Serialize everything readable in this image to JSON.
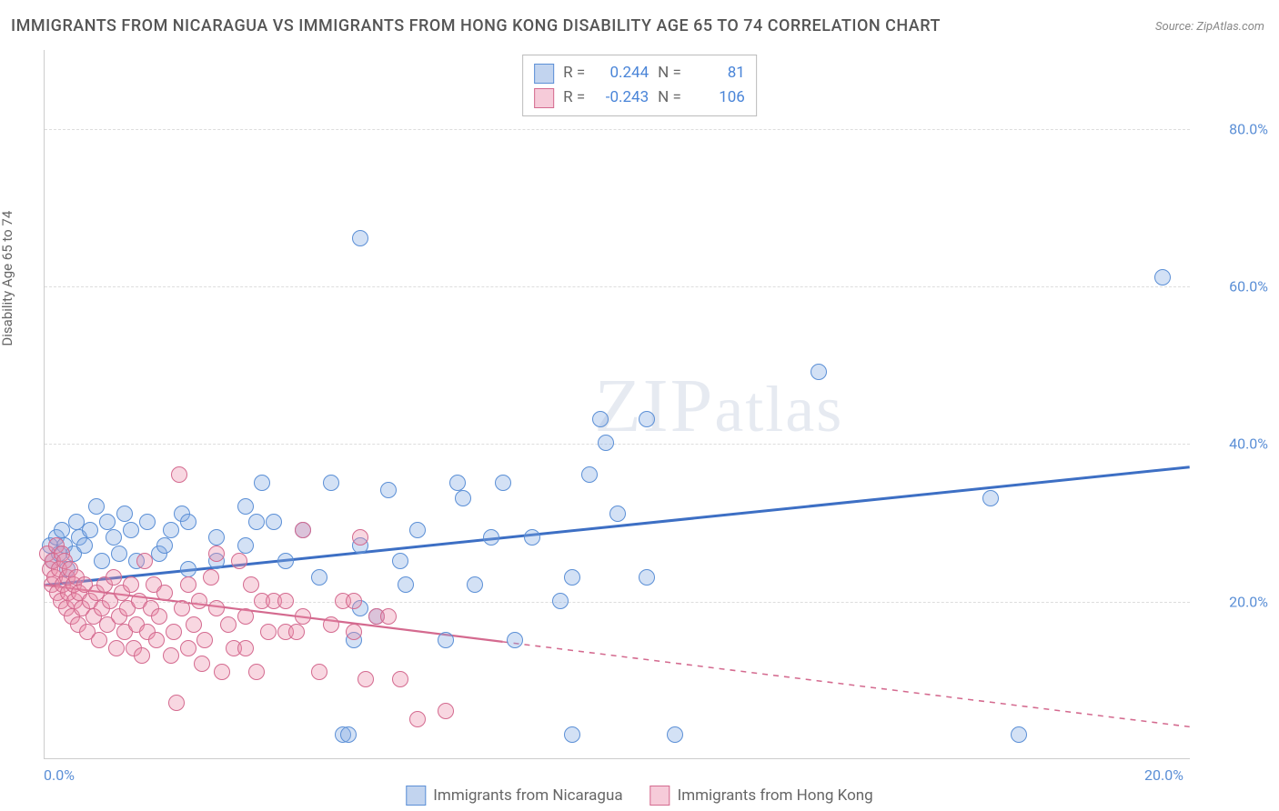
{
  "title": "IMMIGRANTS FROM NICARAGUA VS IMMIGRANTS FROM HONG KONG DISABILITY AGE 65 TO 74 CORRELATION CHART",
  "source": "Source: ZipAtlas.com",
  "y_axis_label": "Disability Age 65 to 74",
  "watermark": "ZIPatlas",
  "chart": {
    "type": "scatter",
    "xlim": [
      0,
      20
    ],
    "ylim": [
      0,
      90
    ],
    "x_ticks": [
      {
        "v": 0,
        "label": "0.0%"
      },
      {
        "v": 20,
        "label": "20.0%"
      }
    ],
    "y_ticks": [
      {
        "v": 20,
        "label": "20.0%"
      },
      {
        "v": 40,
        "label": "40.0%"
      },
      {
        "v": 60,
        "label": "60.0%"
      },
      {
        "v": 80,
        "label": "80.0%"
      }
    ],
    "background_color": "#ffffff",
    "grid_color": "#dddddd",
    "axis_color": "#cccccc",
    "tick_label_color": "#5b8fd6",
    "marker_radius": 9,
    "series": [
      {
        "name": "Immigrants from Nicaragua",
        "color_fill": "rgba(130,170,225,0.35)",
        "color_stroke": "#5b8fd6",
        "r": 0.244,
        "n": 81,
        "trend": {
          "x1": 0,
          "y1": 22,
          "x2": 20,
          "y2": 37,
          "dash": false,
          "stroke": "#3d6fc4",
          "width": 3,
          "solid_until_x": 20
        },
        "points": [
          [
            0.1,
            27
          ],
          [
            0.15,
            25
          ],
          [
            0.2,
            28
          ],
          [
            0.25,
            26
          ],
          [
            0.3,
            29
          ],
          [
            0.35,
            27
          ],
          [
            0.4,
            24
          ],
          [
            0.5,
            26
          ],
          [
            0.55,
            30
          ],
          [
            0.6,
            28
          ],
          [
            0.7,
            27
          ],
          [
            0.8,
            29
          ],
          [
            0.9,
            32
          ],
          [
            1.0,
            25
          ],
          [
            1.1,
            30
          ],
          [
            1.2,
            28
          ],
          [
            1.3,
            26
          ],
          [
            1.4,
            31
          ],
          [
            1.5,
            29
          ],
          [
            1.6,
            25
          ],
          [
            1.8,
            30
          ],
          [
            2.0,
            26
          ],
          [
            2.1,
            27
          ],
          [
            2.2,
            29
          ],
          [
            2.4,
            31
          ],
          [
            2.5,
            24
          ],
          [
            2.5,
            30
          ],
          [
            3.0,
            28
          ],
          [
            3.0,
            25
          ],
          [
            3.5,
            32
          ],
          [
            3.5,
            27
          ],
          [
            3.7,
            30
          ],
          [
            3.8,
            35
          ],
          [
            4.0,
            30
          ],
          [
            4.2,
            25
          ],
          [
            4.5,
            29
          ],
          [
            4.8,
            23
          ],
          [
            5.0,
            35
          ],
          [
            5.2,
            3
          ],
          [
            5.3,
            3
          ],
          [
            5.4,
            15
          ],
          [
            5.5,
            19
          ],
          [
            5.5,
            27
          ],
          [
            5.5,
            66
          ],
          [
            5.8,
            18
          ],
          [
            6.0,
            34
          ],
          [
            6.2,
            25
          ],
          [
            6.3,
            22
          ],
          [
            6.5,
            29
          ],
          [
            7.0,
            15
          ],
          [
            7.2,
            35
          ],
          [
            7.3,
            33
          ],
          [
            7.5,
            22
          ],
          [
            7.8,
            28
          ],
          [
            8.0,
            35
          ],
          [
            8.2,
            15
          ],
          [
            8.5,
            28
          ],
          [
            9.0,
            20
          ],
          [
            9.2,
            23
          ],
          [
            9.2,
            3
          ],
          [
            9.5,
            36
          ],
          [
            9.7,
            43
          ],
          [
            9.8,
            40
          ],
          [
            10.0,
            31
          ],
          [
            10.5,
            43
          ],
          [
            10.5,
            23
          ],
          [
            11.0,
            3
          ],
          [
            13.5,
            49
          ],
          [
            16.5,
            33
          ],
          [
            17.0,
            3
          ],
          [
            19.5,
            61
          ]
        ]
      },
      {
        "name": "Immigrants from Hong Kong",
        "color_fill": "rgba(235,140,170,0.35)",
        "color_stroke": "#d46a8f",
        "r": -0.243,
        "n": 106,
        "trend": {
          "x1": 0,
          "y1": 22,
          "x2": 20,
          "y2": 4,
          "dash": true,
          "stroke": "#d46a8f",
          "width": 2.2,
          "solid_until_x": 8
        },
        "points": [
          [
            0.05,
            26
          ],
          [
            0.1,
            24
          ],
          [
            0.12,
            22
          ],
          [
            0.15,
            25
          ],
          [
            0.18,
            23
          ],
          [
            0.2,
            27
          ],
          [
            0.22,
            21
          ],
          [
            0.25,
            24
          ],
          [
            0.28,
            20
          ],
          [
            0.3,
            26
          ],
          [
            0.32,
            22
          ],
          [
            0.35,
            25
          ],
          [
            0.38,
            19
          ],
          [
            0.4,
            23
          ],
          [
            0.42,
            21
          ],
          [
            0.45,
            24
          ],
          [
            0.48,
            18
          ],
          [
            0.5,
            22
          ],
          [
            0.52,
            20
          ],
          [
            0.55,
            23
          ],
          [
            0.58,
            17
          ],
          [
            0.6,
            21
          ],
          [
            0.65,
            19
          ],
          [
            0.7,
            22
          ],
          [
            0.75,
            16
          ],
          [
            0.8,
            20
          ],
          [
            0.85,
            18
          ],
          [
            0.9,
            21
          ],
          [
            0.95,
            15
          ],
          [
            1.0,
            19
          ],
          [
            1.05,
            22
          ],
          [
            1.1,
            17
          ],
          [
            1.15,
            20
          ],
          [
            1.2,
            23
          ],
          [
            1.25,
            14
          ],
          [
            1.3,
            18
          ],
          [
            1.35,
            21
          ],
          [
            1.4,
            16
          ],
          [
            1.45,
            19
          ],
          [
            1.5,
            22
          ],
          [
            1.55,
            14
          ],
          [
            1.6,
            17
          ],
          [
            1.65,
            20
          ],
          [
            1.7,
            13
          ],
          [
            1.75,
            25
          ],
          [
            1.8,
            16
          ],
          [
            1.85,
            19
          ],
          [
            1.9,
            22
          ],
          [
            1.95,
            15
          ],
          [
            2.0,
            18
          ],
          [
            2.1,
            21
          ],
          [
            2.2,
            13
          ],
          [
            2.25,
            16
          ],
          [
            2.3,
            7
          ],
          [
            2.35,
            36
          ],
          [
            2.4,
            19
          ],
          [
            2.5,
            22
          ],
          [
            2.5,
            14
          ],
          [
            2.6,
            17
          ],
          [
            2.7,
            20
          ],
          [
            2.75,
            12
          ],
          [
            2.8,
            15
          ],
          [
            2.9,
            23
          ],
          [
            3.0,
            19
          ],
          [
            3.0,
            26
          ],
          [
            3.1,
            11
          ],
          [
            3.2,
            17
          ],
          [
            3.3,
            14
          ],
          [
            3.4,
            25
          ],
          [
            3.5,
            14
          ],
          [
            3.5,
            18
          ],
          [
            3.6,
            22
          ],
          [
            3.7,
            11
          ],
          [
            3.8,
            20
          ],
          [
            3.9,
            16
          ],
          [
            4.0,
            20
          ],
          [
            4.2,
            16
          ],
          [
            4.2,
            20
          ],
          [
            4.4,
            16
          ],
          [
            4.5,
            18
          ],
          [
            4.5,
            29
          ],
          [
            4.8,
            11
          ],
          [
            5.0,
            17
          ],
          [
            5.2,
            20
          ],
          [
            5.4,
            16
          ],
          [
            5.4,
            20
          ],
          [
            5.5,
            28
          ],
          [
            5.6,
            10
          ],
          [
            5.8,
            18
          ],
          [
            6.0,
            18
          ],
          [
            6.2,
            10
          ],
          [
            6.5,
            5
          ],
          [
            7.0,
            6
          ]
        ]
      }
    ]
  },
  "stats_labels": {
    "r": "R =",
    "n": "N ="
  },
  "legend": {
    "series1": "Immigrants from Nicaragua",
    "series2": "Immigrants from Hong Kong"
  }
}
